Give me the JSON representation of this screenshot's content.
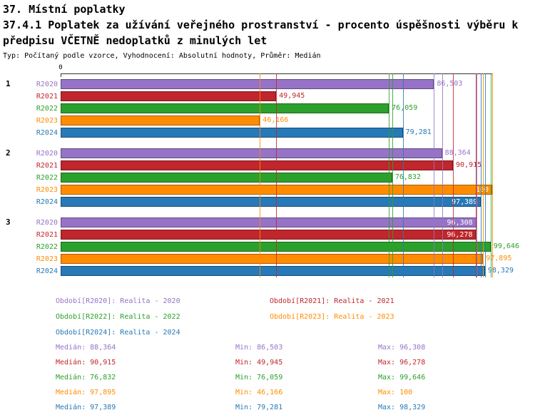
{
  "header": {
    "title": "37. Místní poplatky",
    "subtitle_line1": "37.4.1 Poplatek za užívání veřejného prostranství - procento úspěšnosti výběru k",
    "subtitle_line2": "předpisu VČETNĚ nedoplatků z minulých let",
    "meta": "Typ: Počítaný podle vzorce, Vyhodnocení: Absolutní hodnoty, Průměr: Medián"
  },
  "colors": {
    "r2020": "#9673c6",
    "r2021": "#c0262c",
    "r2022": "#2ca02c",
    "r2023": "#ff8c00",
    "r2024": "#2779b7",
    "axis": "#333333"
  },
  "axis": {
    "origin_label": "0",
    "xmin": 0,
    "xmax": 100
  },
  "chart_data": {
    "type": "bar",
    "orientation": "horizontal",
    "title": "37.4.1 Poplatek za užívání veřejného prostranství - procento úspěšnosti výběru k předpisu VČETNĚ nedoplatků z minulých let",
    "xlim": [
      0,
      100
    ],
    "group_labels": [
      "1",
      "2",
      "3"
    ],
    "series_labels": [
      "R2020",
      "R2021",
      "R2022",
      "R2023",
      "R2024"
    ],
    "groups": [
      {
        "label": "1",
        "bars": [
          {
            "year": "R2020",
            "value": 86.503,
            "value_label": "86,503"
          },
          {
            "year": "R2021",
            "value": 49.945,
            "value_label": "49,945"
          },
          {
            "year": "R2022",
            "value": 76.059,
            "value_label": "76,059"
          },
          {
            "year": "R2023",
            "value": 46.166,
            "value_label": "46,166"
          },
          {
            "year": "R2024",
            "value": 79.281,
            "value_label": "79,281"
          }
        ]
      },
      {
        "label": "2",
        "bars": [
          {
            "year": "R2020",
            "value": 88.364,
            "value_label": "88,364"
          },
          {
            "year": "R2021",
            "value": 90.915,
            "value_label": "90,915"
          },
          {
            "year": "R2022",
            "value": 76.832,
            "value_label": "76,832"
          },
          {
            "year": "R2023",
            "value": 100,
            "value_label": "100"
          },
          {
            "year": "R2024",
            "value": 97.389,
            "value_label": "97,389"
          }
        ]
      },
      {
        "label": "3",
        "bars": [
          {
            "year": "R2020",
            "value": 96.308,
            "value_label": "96,308"
          },
          {
            "year": "R2021",
            "value": 96.278,
            "value_label": "96,278"
          },
          {
            "year": "R2022",
            "value": 99.646,
            "value_label": "99,646"
          },
          {
            "year": "R2023",
            "value": 97.895,
            "value_label": "97,895"
          },
          {
            "year": "R2024",
            "value": 98.329,
            "value_label": "98,329"
          }
        ]
      }
    ],
    "series_stats": [
      {
        "year": "R2020",
        "median": 88.364,
        "min": 86.503,
        "max": 96.308
      },
      {
        "year": "R2021",
        "median": 90.915,
        "min": 49.945,
        "max": 96.278
      },
      {
        "year": "R2022",
        "median": 76.832,
        "min": 76.059,
        "max": 99.646
      },
      {
        "year": "R2023",
        "median": 97.895,
        "min": 46.166,
        "max": 100
      },
      {
        "year": "R2024",
        "median": 97.389,
        "min": 79.281,
        "max": 98.329
      }
    ]
  },
  "legend": {
    "items": [
      {
        "label": "Období[R2020]: Realita - 2020"
      },
      {
        "label": "Období[R2021]: Realita - 2021"
      },
      {
        "label": "Období[R2022]: Realita - 2022"
      },
      {
        "label": "Období[R2023]: Realita - 2023"
      },
      {
        "label": "Období[R2024]: Realita - 2024"
      }
    ]
  },
  "stats": {
    "rows": [
      {
        "median": "Medián: 88,364",
        "min": "Min: 86,503",
        "max": "Max: 96,308"
      },
      {
        "median": "Medián: 90,915",
        "min": "Min: 49,945",
        "max": "Max: 96,278"
      },
      {
        "median": "Medián: 76,832",
        "min": "Min: 76,059",
        "max": "Max: 99,646"
      },
      {
        "median": "Medián: 97,895",
        "min": "Min: 46,166",
        "max": "Max: 100"
      },
      {
        "median": "Medián: 97,389",
        "min": "Min: 79,281",
        "max": "Max: 98,329"
      }
    ]
  }
}
